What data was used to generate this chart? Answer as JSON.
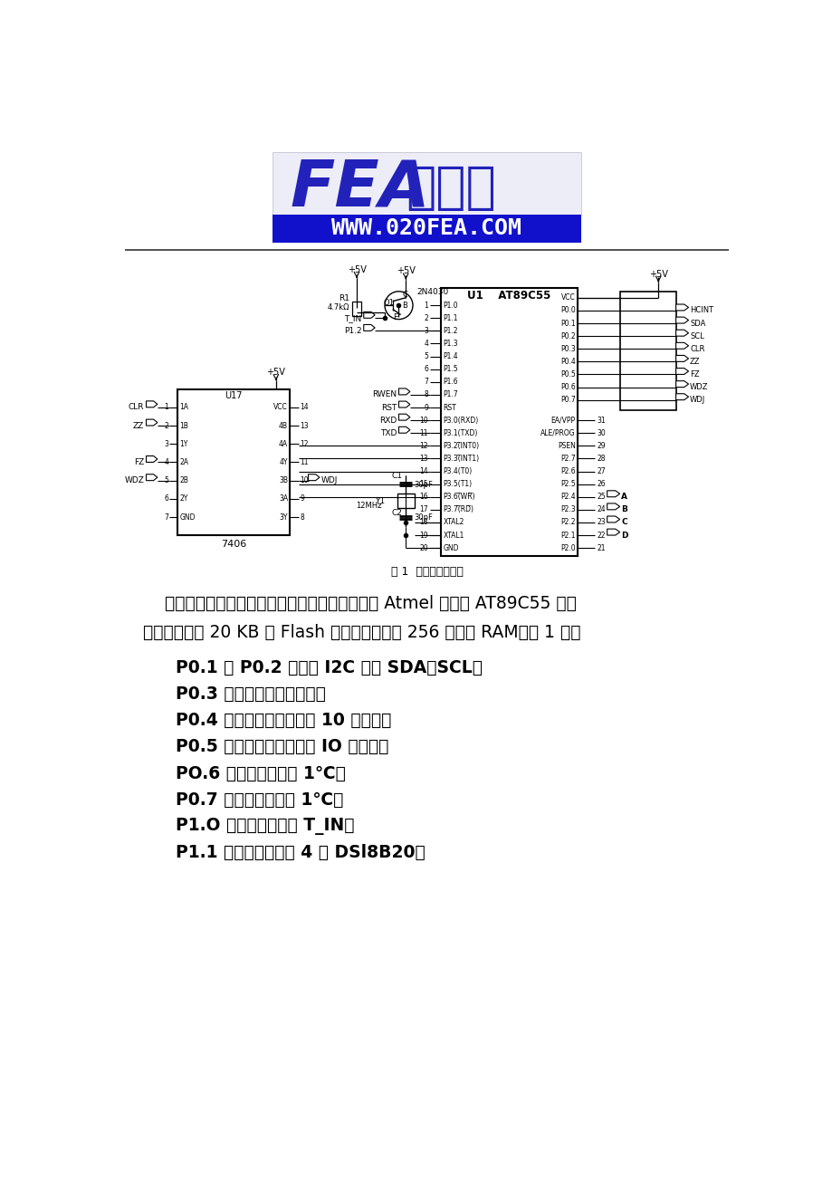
{
  "bg_color": "#ffffff",
  "logo_url": "WWW.020FEA.COM",
  "circuit_caption": "图 1  单片机连接电路",
  "body_paragraphs": [
    "    由于程序比较大和中间变量比较多，这里采用了 Atmel 公司的 AT89C55 型单",
    "片机。它具有 20 KB 的 Flash 程序存储空间和 256 字节的 RAM。图 1 中："
  ],
  "body_bullets": [
    "    P0.1 和 P0.2 口模拟 I2C 总线 SDA、SCL；",
    "    P0.3 口实现计数脉冲清零；",
    "    P0.4 口实现步进电机正转 10 个脉冲；",
    "    P0.5 口实现步进电机反转 IO 个脉冲；",
    "    PO.6 口实现温差增加 1℃；",
    "    P0.7 口实现温差减少 1℃；",
    "    P1.O 口控制是否上拉 T_IN；",
    "    P1.1 口上单总线挂接 4 个 DSl8B20；"
  ],
  "url_bg": "#1111cc",
  "url_fg": "#ffffff",
  "logo_fg": "#2222bb",
  "logo_bg": "#ededf8",
  "separator_color": "#333333"
}
